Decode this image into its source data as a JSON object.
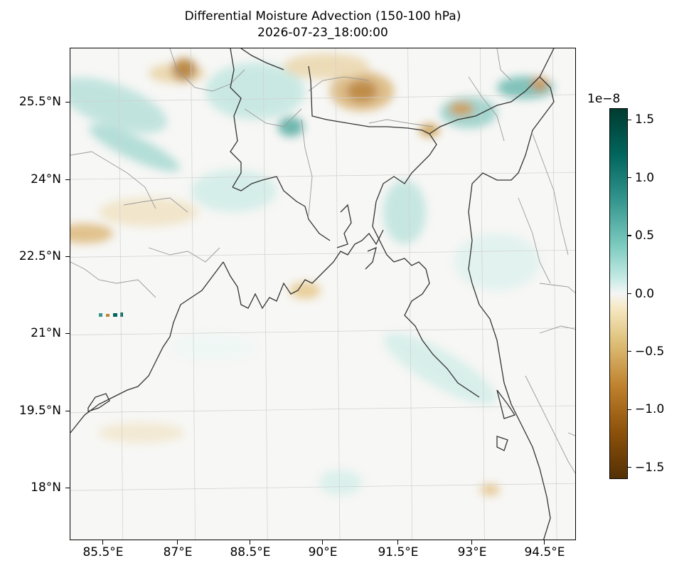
{
  "title": {
    "line1": "Differential Moisture Advection (150-100 hPa)",
    "line2": "2026-07-23_18:00:00"
  },
  "map": {
    "region": "Bay of Bengal / Bangladesh",
    "lat_range": [
      17.0,
      26.5
    ],
    "lon_range": [
      84.5,
      95.0
    ],
    "lat_ticks": [
      {
        "value": 25.5,
        "label": "25.5°N"
      },
      {
        "value": 24.0,
        "label": "24°N"
      },
      {
        "value": 22.5,
        "label": "22.5°N"
      },
      {
        "value": 21.0,
        "label": "21°N"
      },
      {
        "value": 19.5,
        "label": "19.5°N"
      },
      {
        "value": 18.0,
        "label": "18°N"
      }
    ],
    "lon_ticks": [
      {
        "value": 85.5,
        "label": "85.5°E"
      },
      {
        "value": 87.0,
        "label": "87°E"
      },
      {
        "value": 88.5,
        "label": "88.5°E"
      },
      {
        "value": 90.0,
        "label": "90°E"
      },
      {
        "value": 91.5,
        "label": "91.5°E"
      },
      {
        "value": 93.0,
        "label": "93°E"
      },
      {
        "value": 94.5,
        "label": "94.5°E"
      }
    ],
    "gridlines": true,
    "colors": {
      "coastline": "#333333",
      "borders": "#999999",
      "gridline": "#cccccc"
    }
  },
  "colorbar": {
    "exponent_label": "1e−8",
    "min": -1.6,
    "max": 1.6,
    "colormap": "BrBG",
    "ticks": [
      {
        "value": 1.5,
        "label": "1.5"
      },
      {
        "value": 1.0,
        "label": "1.0"
      },
      {
        "value": 0.5,
        "label": "0.5"
      },
      {
        "value": 0.0,
        "label": "0.0"
      },
      {
        "value": -0.5,
        "label": "−0.5"
      },
      {
        "value": -1.0,
        "label": "−1.0"
      },
      {
        "value": -1.5,
        "label": "−1.5"
      }
    ]
  }
}
